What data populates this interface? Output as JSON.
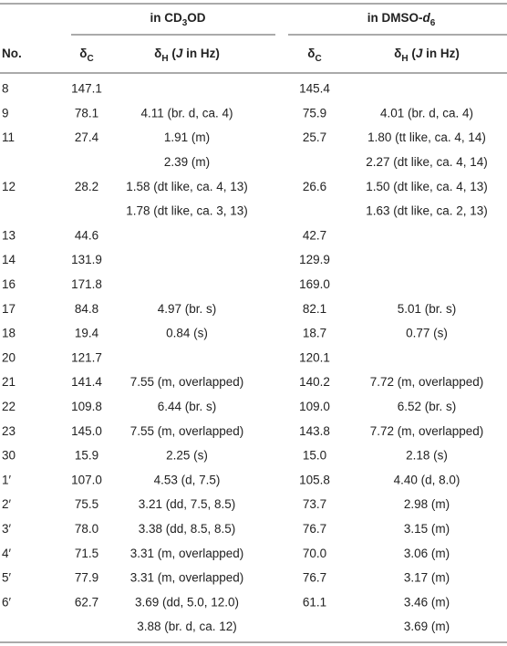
{
  "table": {
    "group_headers": [
      [
        {
          "text": "in CD"
        },
        {
          "text": "3",
          "style": "sub"
        },
        {
          "text": "OD"
        }
      ],
      [
        {
          "text": "in DMSO-"
        },
        {
          "text": "d",
          "style": "italic"
        },
        {
          "text": "6",
          "style": "sub"
        }
      ]
    ],
    "column_headers": [
      [
        {
          "text": "No."
        }
      ],
      [
        {
          "text": "δ"
        },
        {
          "text": "C",
          "style": "sub"
        }
      ],
      [
        {
          "text": "δ"
        },
        {
          "text": "H",
          "style": "sub"
        },
        {
          "text": " ("
        },
        {
          "text": "J",
          "style": "italic"
        },
        {
          "text": " in Hz)"
        }
      ],
      [
        {
          "text": "δ"
        },
        {
          "text": "C",
          "style": "sub"
        }
      ],
      [
        {
          "text": "δ"
        },
        {
          "text": "H",
          "style": "sub"
        },
        {
          "text": " ("
        },
        {
          "text": "J",
          "style": "italic"
        },
        {
          "text": " in Hz)"
        }
      ]
    ],
    "rows": [
      [
        "8",
        "147.1",
        null,
        "145.4",
        null
      ],
      [
        "9",
        "78.1",
        "4.11 (br. d, ca. 4)",
        "75.9",
        "4.01 (br. d, ca. 4)"
      ],
      [
        "11",
        "27.4",
        "1.91 (m)",
        "25.7",
        "1.80 (tt like, ca. 4, 14)"
      ],
      [
        null,
        null,
        "2.39 (m)",
        null,
        "2.27 (dt like, ca. 4, 14)"
      ],
      [
        "12",
        "28.2",
        "1.58 (dt like, ca. 4, 13)",
        "26.6",
        "1.50 (dt like, ca. 4, 13)"
      ],
      [
        null,
        null,
        "1.78 (dt like, ca. 3, 13)",
        null,
        "1.63 (dt like, ca. 2, 13)"
      ],
      [
        "13",
        "44.6",
        null,
        "42.7",
        null
      ],
      [
        "14",
        "131.9",
        null,
        "129.9",
        null
      ],
      [
        "16",
        "171.8",
        null,
        "169.0",
        null
      ],
      [
        "17",
        "84.8",
        "4.97 (br. s)",
        "82.1",
        "5.01 (br. s)"
      ],
      [
        "18",
        "19.4",
        "0.84 (s)",
        "18.7",
        "0.77 (s)"
      ],
      [
        "20",
        "121.7",
        null,
        "120.1",
        null
      ],
      [
        "21",
        "141.4",
        "7.55 (m, overlapped)",
        "140.2",
        "7.72 (m, overlapped)"
      ],
      [
        "22",
        "109.8",
        "6.44 (br. s)",
        "109.0",
        "6.52 (br. s)"
      ],
      [
        "23",
        "145.0",
        "7.55 (m, overlapped)",
        "143.8",
        "7.72 (m, overlapped)"
      ],
      [
        "30",
        "15.9",
        "2.25 (s)",
        "15.0",
        "2.18 (s)"
      ],
      [
        "1′",
        "107.0",
        "4.53 (d, 7.5)",
        "105.8",
        "4.40 (d, 8.0)"
      ],
      [
        "2′",
        "75.5",
        "3.21 (dd, 7.5, 8.5)",
        "73.7",
        "2.98 (m)"
      ],
      [
        "3′",
        "78.0",
        "3.38 (dd, 8.5, 8.5)",
        "76.7",
        "3.15 (m)"
      ],
      [
        "4′",
        "71.5",
        "3.31 (m, overlapped)",
        "70.0",
        "3.06 (m)"
      ],
      [
        "5′",
        "77.9",
        "3.31 (m, overlapped)",
        "76.7",
        "3.17 (m)"
      ],
      [
        "6′",
        "62.7",
        "3.69 (dd, 5.0, 12.0)",
        "61.1",
        "3.46 (m)"
      ],
      [
        null,
        null,
        "3.88 (br. d, ca. 12)",
        null,
        "3.69 (m)"
      ]
    ]
  }
}
